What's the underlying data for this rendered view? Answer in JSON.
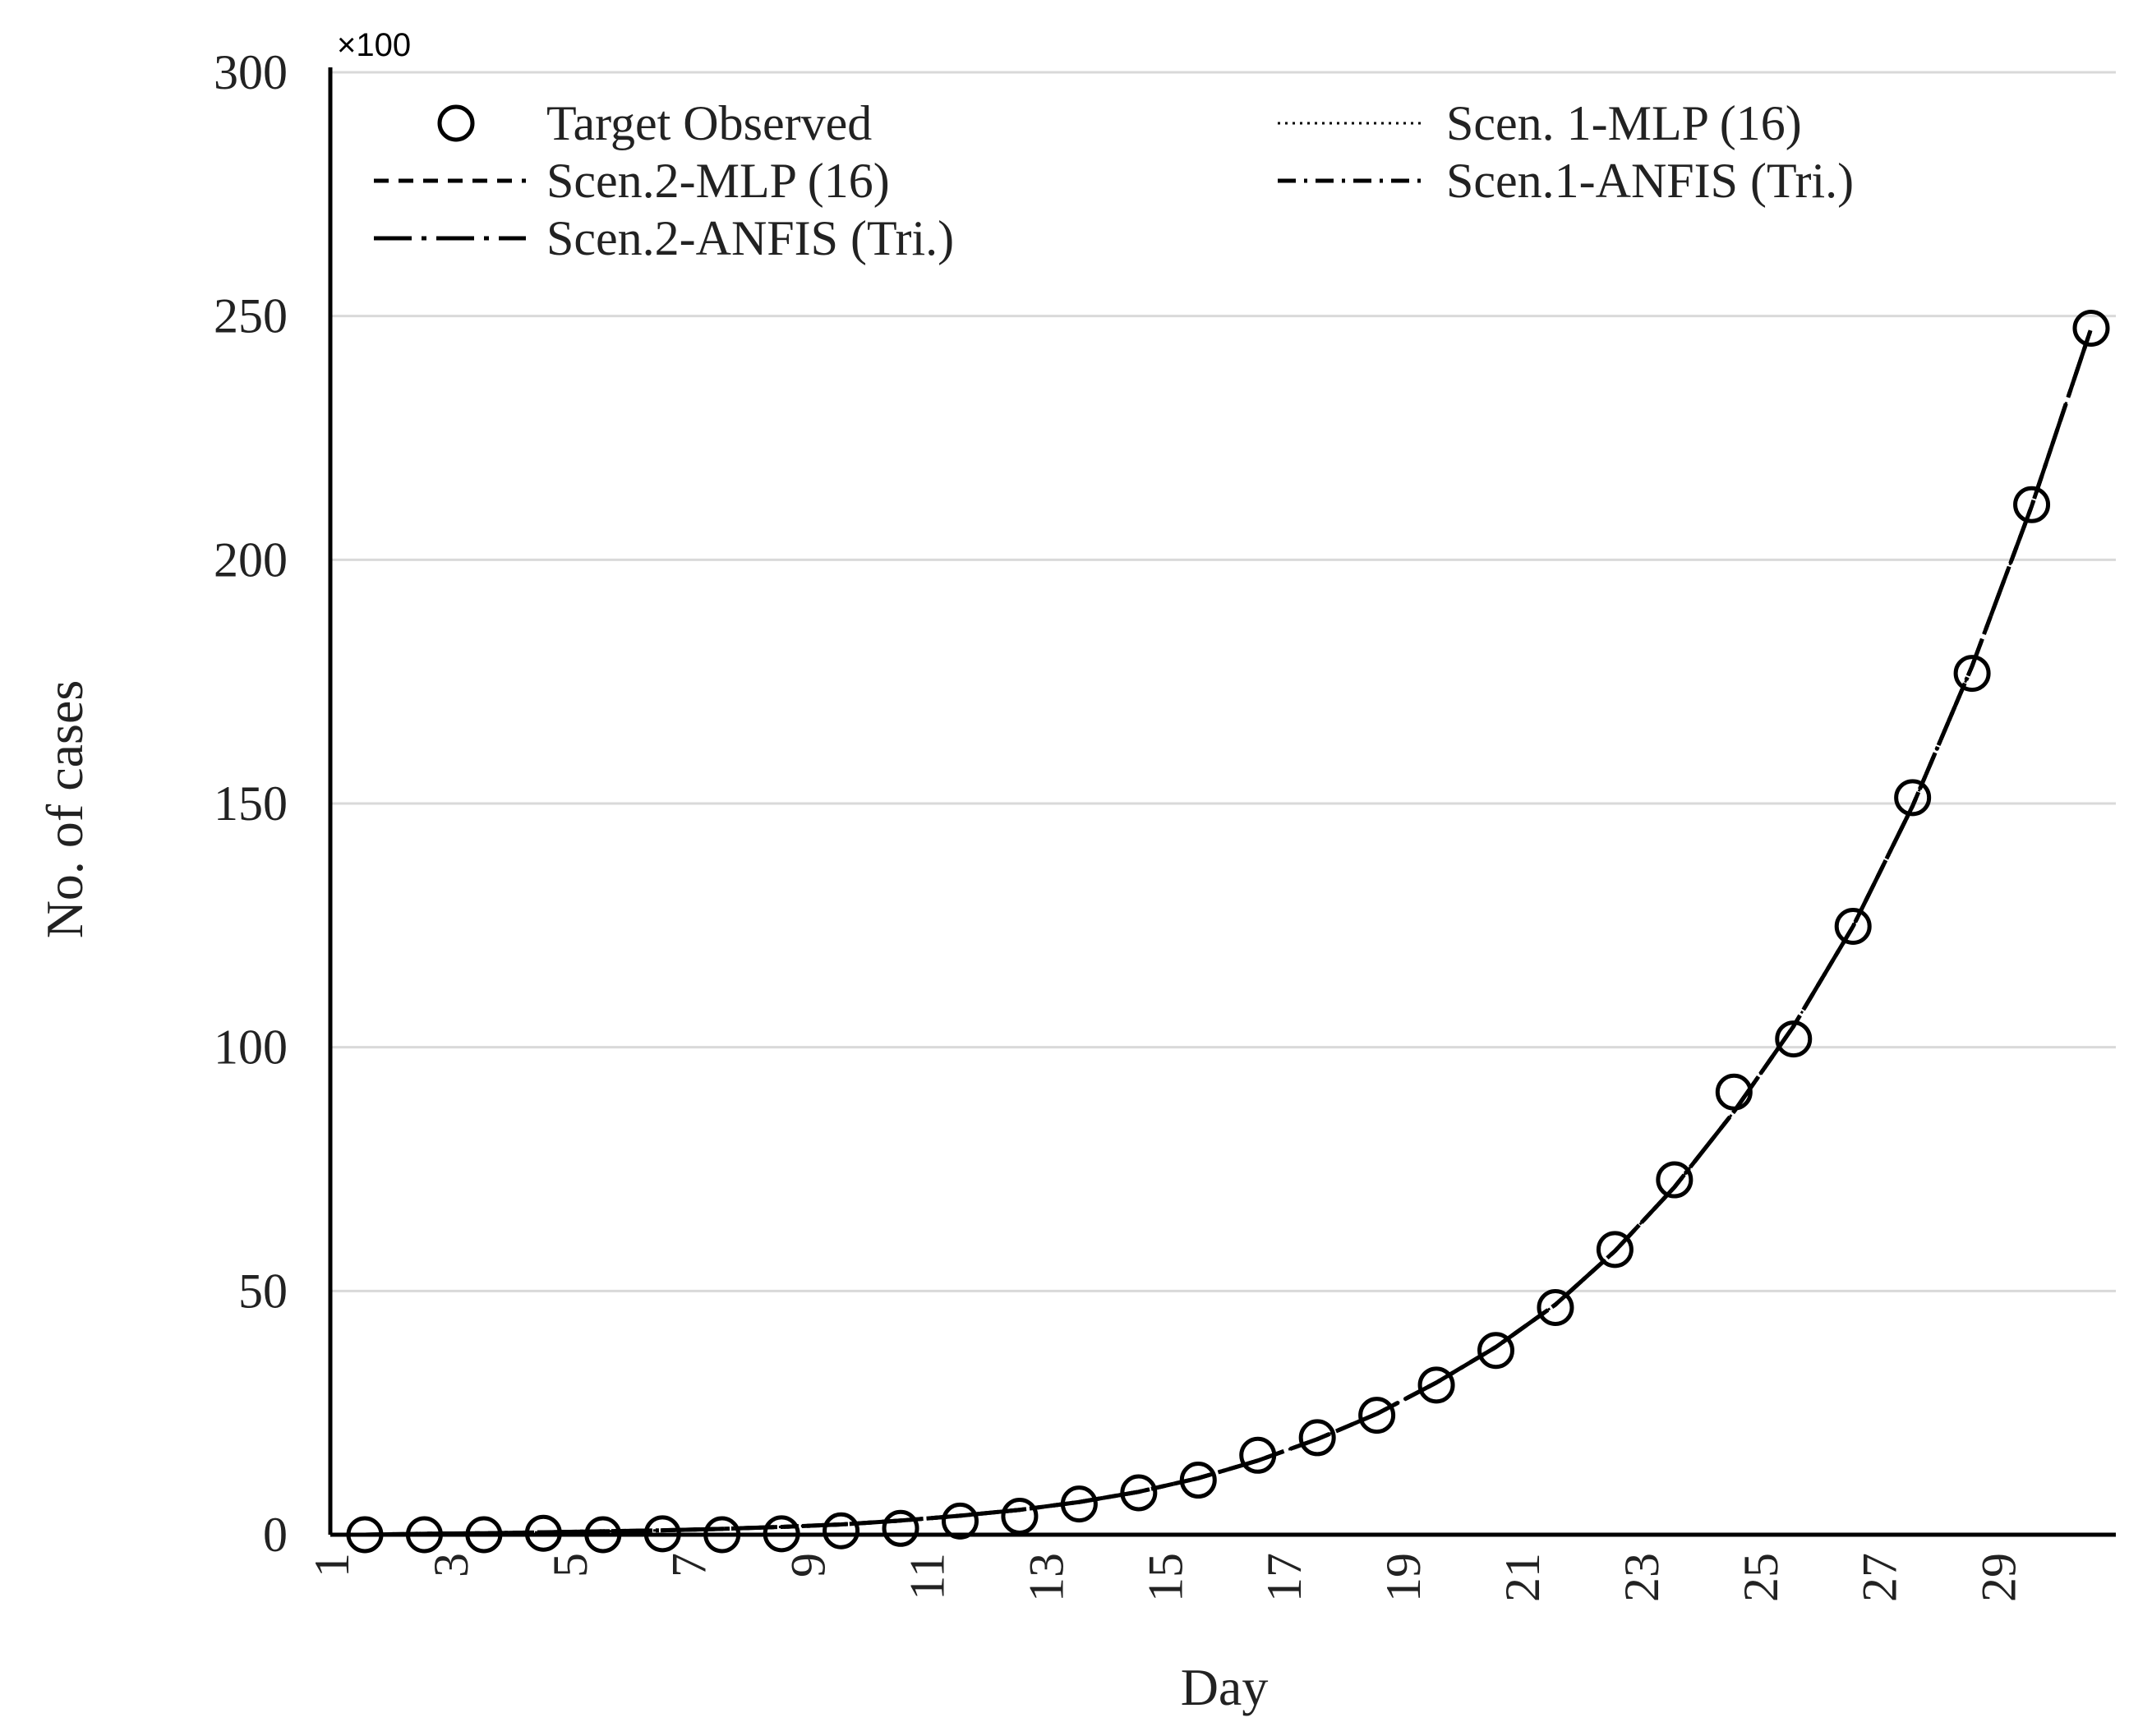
{
  "chart_data": {
    "type": "line",
    "title": "",
    "xlabel": "Day",
    "ylabel": "No. of cases",
    "y_multiplier_label": "×100",
    "xlim": [
      1,
      30
    ],
    "ylim": [
      0,
      300
    ],
    "y_ticks": [
      0,
      50,
      100,
      150,
      200,
      250,
      300
    ],
    "x_tick_labels": [
      "1",
      "3",
      "5",
      "7",
      "9",
      "11",
      "13",
      "15",
      "17",
      "19",
      "21",
      "23",
      "25",
      "27",
      "29"
    ],
    "grid": true,
    "legend_position": "top",
    "x": [
      1,
      2,
      3,
      4,
      5,
      6,
      7,
      8,
      9,
      10,
      11,
      12,
      13,
      14,
      15,
      16,
      17,
      18,
      19,
      20,
      21,
      22,
      23,
      24,
      25,
      26,
      27,
      28,
      29,
      30
    ],
    "series": [
      {
        "name": "Target Observed",
        "style": "circle-markers",
        "values": [
          0,
          0,
          0,
          0.3,
          0,
          0.2,
          0,
          0.2,
          0.8,
          1.3,
          2.8,
          3.8,
          6.3,
          8.6,
          11.2,
          16.3,
          19.9,
          24.5,
          30.7,
          37.8,
          46.6,
          58.5,
          72.8,
          90.8,
          101.7,
          124.8,
          151.2,
          176.7,
          211.3,
          247.5
        ]
      },
      {
        "name": "Scen. 1-MLP (16)",
        "style": "dotted",
        "values": [
          0,
          0.2,
          0.3,
          0.5,
          0.7,
          0.9,
          1.2,
          1.6,
          2.1,
          2.9,
          3.9,
          5.1,
          6.7,
          8.8,
          11.6,
          15.2,
          19.6,
          24.8,
          31.2,
          38.5,
          47.2,
          58.2,
          71.3,
          86.8,
          104.3,
          124.8,
          149.5,
          178.2,
          211.0,
          247.5
        ]
      },
      {
        "name": "Scen.2-MLP (16)",
        "style": "dashed",
        "values": [
          0,
          0.2,
          0.3,
          0.5,
          0.7,
          0.9,
          1.2,
          1.6,
          2.1,
          2.9,
          3.9,
          5.1,
          6.7,
          8.8,
          11.6,
          15.2,
          19.6,
          24.8,
          31.2,
          38.5,
          47.2,
          58.2,
          71.3,
          86.8,
          104.3,
          124.8,
          149.5,
          178.2,
          211.0,
          247.5
        ]
      },
      {
        "name": "Scen.1-ANFIS (Tri.)",
        "style": "dash-dot",
        "values": [
          0,
          0.2,
          0.3,
          0.5,
          0.7,
          0.9,
          1.2,
          1.6,
          2.1,
          2.9,
          3.9,
          5.1,
          6.7,
          8.8,
          11.6,
          15.2,
          19.6,
          24.8,
          31.2,
          38.5,
          47.2,
          58.2,
          71.3,
          86.8,
          104.3,
          124.8,
          149.5,
          178.2,
          211.0,
          247.5
        ]
      },
      {
        "name": "Scen.2-ANFIS (Tri.)",
        "style": "long-dash-dot",
        "values": [
          0,
          0.2,
          0.3,
          0.5,
          0.7,
          0.9,
          1.2,
          1.6,
          2.1,
          2.9,
          3.9,
          5.1,
          6.7,
          8.8,
          11.6,
          15.2,
          19.6,
          24.8,
          31.2,
          38.5,
          47.2,
          58.2,
          71.3,
          86.8,
          104.3,
          124.8,
          149.5,
          178.2,
          211.0,
          247.5
        ]
      }
    ],
    "colors": {
      "line": "#000000",
      "grid": "#d9d9d9",
      "axis": "#000000",
      "legend_highlight": "#2e6fba"
    }
  }
}
